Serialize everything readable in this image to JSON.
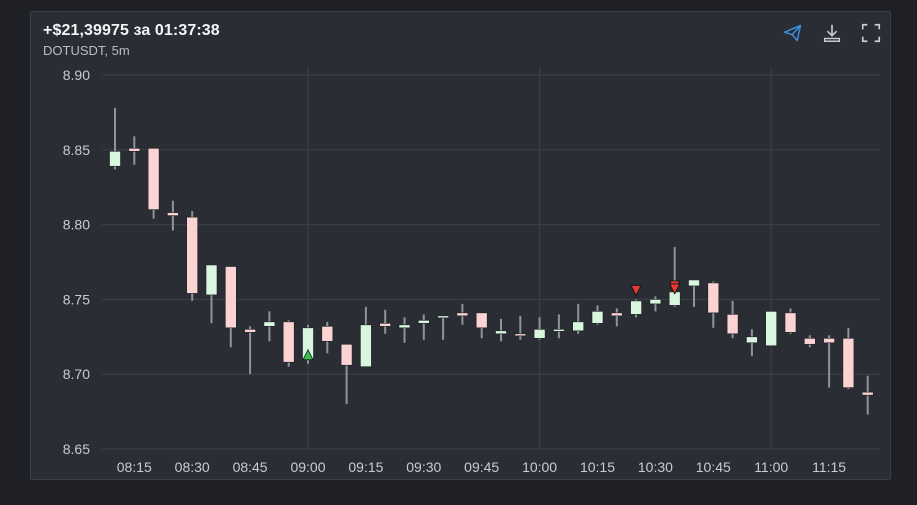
{
  "header": {
    "title": "+$21,39975 за 01:37:38",
    "subtitle": "DOTUSDT, 5m"
  },
  "toolbar": {
    "icons": [
      "send-icon",
      "download-icon",
      "fullscreen-icon"
    ]
  },
  "colors": {
    "bull": "#d9f7df",
    "bear": "#fbd3d3",
    "wick": "#8f939b",
    "grid": "#3d414a",
    "buy_marker": "#33c24d",
    "sell_marker": "#e03a3a",
    "accent": "#3a8fe0"
  },
  "chart_data": {
    "type": "candlestick",
    "symbol": "DOTUSDT",
    "interval": "5m",
    "ylim": [
      8.65,
      8.9
    ],
    "y_ticks": [
      "8.90",
      "8.85",
      "8.80",
      "8.75",
      "8.70",
      "8.65"
    ],
    "x_ticks": [
      "08:15",
      "08:30",
      "08:45",
      "09:00",
      "09:15",
      "09:30",
      "09:45",
      "10:00",
      "10:15",
      "10:30",
      "10:45",
      "11:00",
      "11:15"
    ],
    "grid": true,
    "candles": [
      {
        "t": "08:10",
        "o": 8.839,
        "h": 8.878,
        "l": 8.837,
        "c": 8.849
      },
      {
        "t": "08:15",
        "o": 8.851,
        "h": 8.859,
        "l": 8.84,
        "c": 8.849
      },
      {
        "t": "08:20",
        "o": 8.851,
        "h": 8.851,
        "l": 8.804,
        "c": 8.81
      },
      {
        "t": "08:25",
        "o": 8.808,
        "h": 8.816,
        "l": 8.796,
        "c": 8.806
      },
      {
        "t": "08:30",
        "o": 8.805,
        "h": 8.809,
        "l": 8.749,
        "c": 8.754
      },
      {
        "t": "08:35",
        "o": 8.753,
        "h": 8.773,
        "l": 8.734,
        "c": 8.773
      },
      {
        "t": "08:40",
        "o": 8.772,
        "h": 8.772,
        "l": 8.718,
        "c": 8.731
      },
      {
        "t": "08:45",
        "o": 8.73,
        "h": 8.732,
        "l": 8.7,
        "c": 8.728
      },
      {
        "t": "08:50",
        "o": 8.732,
        "h": 8.742,
        "l": 8.722,
        "c": 8.735
      },
      {
        "t": "08:55",
        "o": 8.735,
        "h": 8.736,
        "l": 8.705,
        "c": 8.708
      },
      {
        "t": "09:00",
        "o": 8.71,
        "h": 8.733,
        "l": 8.707,
        "c": 8.731
      },
      {
        "t": "09:05",
        "o": 8.732,
        "h": 8.735,
        "l": 8.714,
        "c": 8.722
      },
      {
        "t": "09:10",
        "o": 8.72,
        "h": 8.72,
        "l": 8.68,
        "c": 8.706
      },
      {
        "t": "09:15",
        "o": 8.705,
        "h": 8.745,
        "l": 8.705,
        "c": 8.733
      },
      {
        "t": "09:20",
        "o": 8.734,
        "h": 8.743,
        "l": 8.727,
        "c": 8.732
      },
      {
        "t": "09:25",
        "o": 8.731,
        "h": 8.738,
        "l": 8.721,
        "c": 8.733
      },
      {
        "t": "09:30",
        "o": 8.734,
        "h": 8.74,
        "l": 8.723,
        "c": 8.736
      },
      {
        "t": "09:35",
        "o": 8.738,
        "h": 8.739,
        "l": 8.723,
        "c": 8.739
      },
      {
        "t": "09:40",
        "o": 8.741,
        "h": 8.747,
        "l": 8.733,
        "c": 8.739
      },
      {
        "t": "09:45",
        "o": 8.741,
        "h": 8.741,
        "l": 8.724,
        "c": 8.731
      },
      {
        "t": "09:50",
        "o": 8.727,
        "h": 8.737,
        "l": 8.722,
        "c": 8.729
      },
      {
        "t": "09:55",
        "o": 8.727,
        "h": 8.739,
        "l": 8.723,
        "c": 8.726
      },
      {
        "t": "10:00",
        "o": 8.724,
        "h": 8.738,
        "l": 8.723,
        "c": 8.73
      },
      {
        "t": "10:05",
        "o": 8.729,
        "h": 8.74,
        "l": 8.724,
        "c": 8.73
      },
      {
        "t": "10:10",
        "o": 8.729,
        "h": 8.747,
        "l": 8.727,
        "c": 8.735
      },
      {
        "t": "10:15",
        "o": 8.734,
        "h": 8.746,
        "l": 8.733,
        "c": 8.742
      },
      {
        "t": "10:20",
        "o": 8.741,
        "h": 8.744,
        "l": 8.732,
        "c": 8.739
      },
      {
        "t": "10:25",
        "o": 8.74,
        "h": 8.75,
        "l": 8.738,
        "c": 8.749
      },
      {
        "t": "10:30",
        "o": 8.747,
        "h": 8.752,
        "l": 8.742,
        "c": 8.75
      },
      {
        "t": "10:35",
        "o": 8.746,
        "h": 8.785,
        "l": 8.745,
        "c": 8.755
      },
      {
        "t": "10:40",
        "o": 8.759,
        "h": 8.763,
        "l": 8.745,
        "c": 8.763
      },
      {
        "t": "10:45",
        "o": 8.761,
        "h": 8.762,
        "l": 8.731,
        "c": 8.741
      },
      {
        "t": "10:50",
        "o": 8.74,
        "h": 8.749,
        "l": 8.724,
        "c": 8.727
      },
      {
        "t": "10:55",
        "o": 8.721,
        "h": 8.73,
        "l": 8.712,
        "c": 8.725
      },
      {
        "t": "11:00",
        "o": 8.719,
        "h": 8.742,
        "l": 8.719,
        "c": 8.742
      },
      {
        "t": "11:05",
        "o": 8.741,
        "h": 8.744,
        "l": 8.727,
        "c": 8.728
      },
      {
        "t": "11:10",
        "o": 8.724,
        "h": 8.726,
        "l": 8.718,
        "c": 8.72
      },
      {
        "t": "11:15",
        "o": 8.724,
        "h": 8.726,
        "l": 8.691,
        "c": 8.721
      },
      {
        "t": "11:20",
        "o": 8.724,
        "h": 8.731,
        "l": 8.69,
        "c": 8.691
      },
      {
        "t": "11:25",
        "o": 8.688,
        "h": 8.699,
        "l": 8.673,
        "c": 8.686
      }
    ],
    "markers": [
      {
        "t": "09:00",
        "price": 8.713,
        "side": "buy"
      },
      {
        "t": "10:25",
        "price": 8.756,
        "side": "sell"
      },
      {
        "t": "10:35",
        "price": 8.759,
        "side": "sell"
      },
      {
        "t": "10:35",
        "price": 8.757,
        "side": "sell"
      }
    ]
  }
}
